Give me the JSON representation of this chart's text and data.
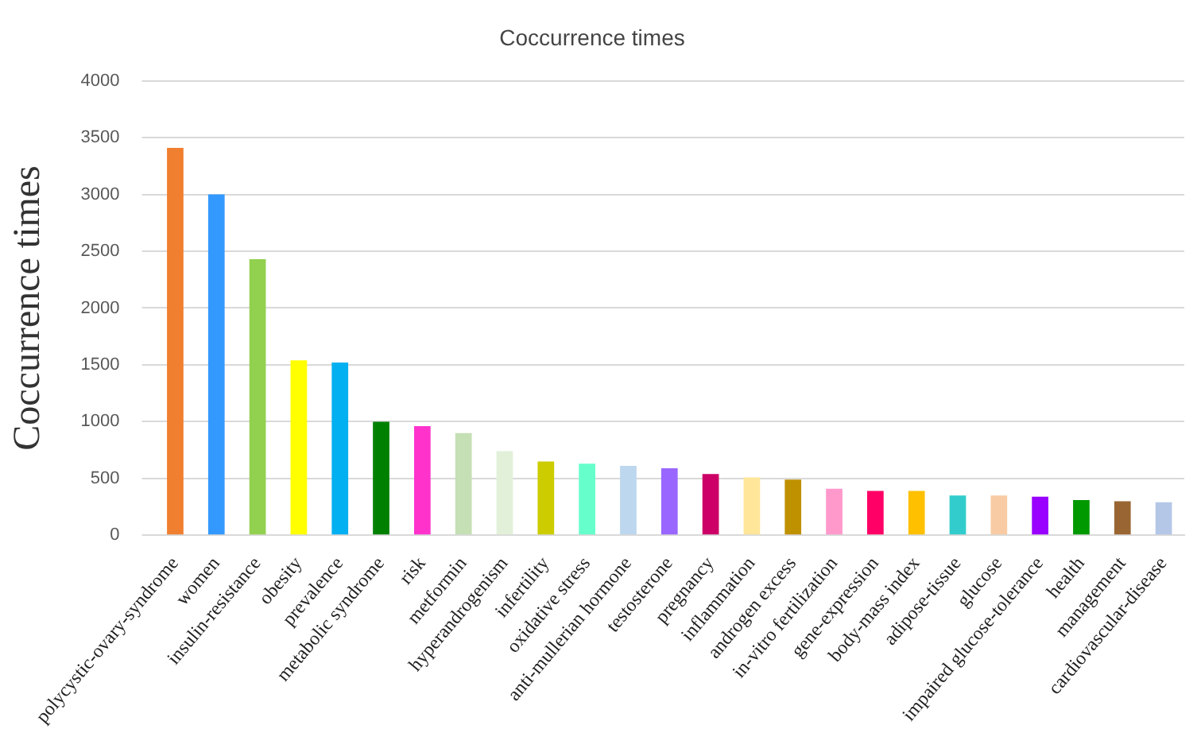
{
  "chart_data": {
    "type": "bar",
    "title": "Coccurrence times",
    "ylabel": "Coccurrence times",
    "categories": [
      "polycystic-ovary-syndrome",
      "women",
      "insulin-resistance",
      "obesity",
      "prevalence",
      "metabolic syndrome",
      "risk",
      "metformin",
      "hyperandrogenism",
      "infertility",
      "oxidative stress",
      "anti-mullerian hormone",
      "testosterone",
      "pregnancy",
      "inflammation",
      "androgen excess",
      "in-vitro fertilization",
      "gene-expression",
      "body-mass index",
      "adipose-tissue",
      "glucose",
      "impaired glucose-tolerance",
      "health",
      "management",
      "cardiovascular-disease"
    ],
    "values": [
      3410,
      3000,
      2430,
      1540,
      1520,
      1000,
      960,
      900,
      740,
      650,
      630,
      610,
      590,
      540,
      510,
      490,
      410,
      390,
      390,
      350,
      350,
      340,
      310,
      300,
      290
    ],
    "colors": [
      "#f07f30",
      "#3399ff",
      "#92d050",
      "#ffff00",
      "#00b0f0",
      "#008000",
      "#ff33cc",
      "#c5e0b4",
      "#e2f0d9",
      "#cccc00",
      "#66ffcc",
      "#bdd7ee",
      "#9966ff",
      "#cc0066",
      "#ffe699",
      "#bf9000",
      "#ff99cc",
      "#ff0066",
      "#ffc000",
      "#33cccc",
      "#f8cba4",
      "#9900ff",
      "#009900",
      "#996633",
      "#b4c7e7"
    ],
    "ylim": [
      0,
      4000
    ],
    "yticks": [
      0,
      500,
      1000,
      1500,
      2000,
      2500,
      3000,
      3500,
      4000
    ],
    "grid": "y",
    "legend": false
  }
}
